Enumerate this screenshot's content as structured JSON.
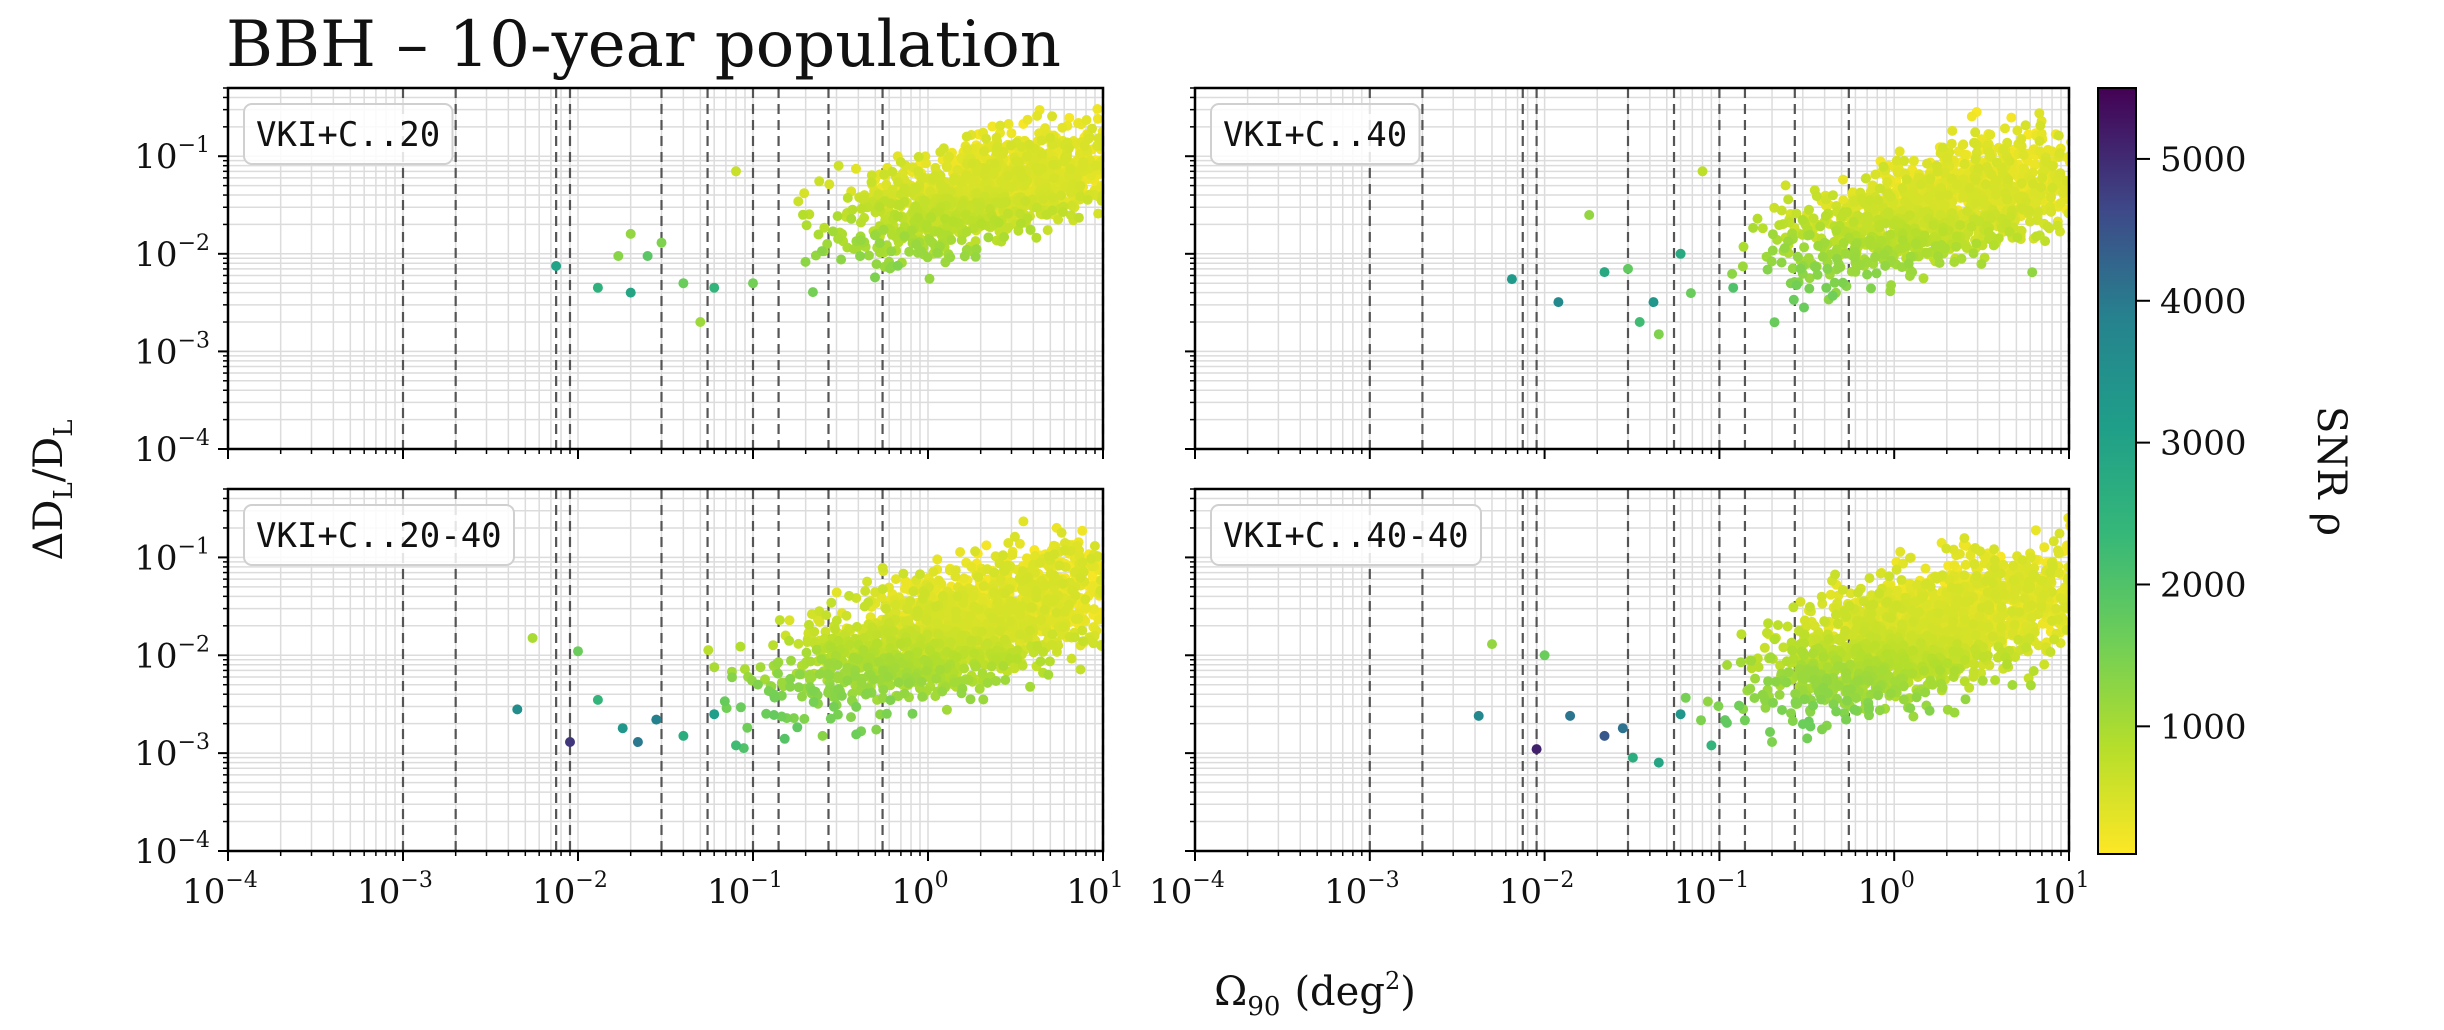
{
  "chart_data": {
    "type": "scatter",
    "title": "BBH – 10-year population",
    "xlabel": "Ω",
    "xlabel_sub": "90",
    "xlabel_unit_open": "(deg",
    "xlabel_unit_sup": "2",
    "xlabel_unit_close": ")",
    "ylabel": "ΔD",
    "ylabel_sub": "L",
    "ylabel_div": "/D",
    "ylabel_sub2": "L",
    "xscale": "log",
    "yscale": "log",
    "xlim": [
      0.0001,
      10
    ],
    "ylim": [
      0.0001,
      0.5
    ],
    "x_tick_labels": [
      "10",
      "10",
      "10",
      "10",
      "10",
      "10"
    ],
    "x_tick_exponents": [
      "−4",
      "−3",
      "−2",
      "−1",
      "0",
      "1"
    ],
    "x_tick_values": [
      0.0001,
      0.001,
      0.01,
      0.1,
      1,
      10
    ],
    "y_tick_labels": [
      "10",
      "10",
      "10",
      "10"
    ],
    "y_tick_exponents": [
      "−4",
      "−3",
      "−2",
      "−1"
    ],
    "y_tick_values": [
      0.0001,
      0.001,
      0.01,
      0.1
    ],
    "reference_lines_x": [
      0.001,
      0.002,
      0.0075,
      0.009,
      0.03,
      0.055,
      0.1,
      0.14,
      0.27,
      0.55,
      10
    ],
    "grid": true,
    "colorbar": {
      "label": "SNR",
      "label_symbol": "ρ",
      "range": [
        100,
        5500
      ],
      "ticks": [
        1000,
        2000,
        3000,
        4000,
        5000
      ],
      "tick_labels": [
        "1000",
        "2000",
        "3000",
        "4000",
        "5000"
      ],
      "colormap": "viridis_r"
    },
    "panels": [
      {
        "label": "VKI+C..20",
        "seed": 11,
        "n_points": 1400,
        "cloud": {
          "logx_center": 0.35,
          "logx_spread": 0.55,
          "logy_center": -1.35,
          "logy_spread": 0.45,
          "slope": 0.45
        },
        "outliers": [
          {
            "x": 0.0075,
            "y": 0.0075,
            "snr": 2700
          },
          {
            "x": 0.013,
            "y": 0.0045,
            "snr": 2300
          },
          {
            "x": 0.017,
            "y": 0.0095,
            "snr": 1200
          },
          {
            "x": 0.02,
            "y": 0.016,
            "snr": 1100
          },
          {
            "x": 0.025,
            "y": 0.0095,
            "snr": 1700
          },
          {
            "x": 0.03,
            "y": 0.013,
            "snr": 1300
          },
          {
            "x": 0.04,
            "y": 0.005,
            "snr": 1500
          },
          {
            "x": 0.05,
            "y": 0.002,
            "snr": 1000
          },
          {
            "x": 0.06,
            "y": 0.0045,
            "snr": 2200
          },
          {
            "x": 0.08,
            "y": 0.07,
            "snr": 600
          },
          {
            "x": 0.1,
            "y": 0.005,
            "snr": 1400
          }
        ],
        "bright_points": [
          {
            "x": 0.02,
            "y": 0.004,
            "snr": 2600
          }
        ]
      },
      {
        "label": "VKI+C..40",
        "seed": 23,
        "n_points": 1500,
        "cloud": {
          "logx_center": 0.3,
          "logx_spread": 0.6,
          "logy_center": -1.5,
          "logy_spread": 0.5,
          "slope": 0.45
        },
        "outliers": [
          {
            "x": 0.0065,
            "y": 0.0055,
            "snr": 2900
          },
          {
            "x": 0.012,
            "y": 0.0032,
            "snr": 3300
          },
          {
            "x": 0.018,
            "y": 0.025,
            "snr": 1100
          },
          {
            "x": 0.022,
            "y": 0.0065,
            "snr": 2500
          },
          {
            "x": 0.03,
            "y": 0.007,
            "snr": 1600
          },
          {
            "x": 0.035,
            "y": 0.002,
            "snr": 2000
          },
          {
            "x": 0.042,
            "y": 0.0032,
            "snr": 3000
          },
          {
            "x": 0.045,
            "y": 0.0015,
            "snr": 1300
          },
          {
            "x": 0.06,
            "y": 0.01,
            "snr": 2500
          },
          {
            "x": 0.08,
            "y": 0.07,
            "snr": 700
          },
          {
            "x": 0.12,
            "y": 0.0045,
            "snr": 1800
          }
        ],
        "bright_points": []
      },
      {
        "label": "VKI+C..20-40",
        "seed": 37,
        "n_points": 1900,
        "cloud": {
          "logx_center": 0.2,
          "logx_spread": 0.65,
          "logy_center": -1.7,
          "logy_spread": 0.55,
          "slope": 0.5
        },
        "outliers": [
          {
            "x": 0.0045,
            "y": 0.0028,
            "snr": 3200
          },
          {
            "x": 0.0055,
            "y": 0.015,
            "snr": 900
          },
          {
            "x": 0.009,
            "y": 0.0013,
            "snr": 5000
          },
          {
            "x": 0.01,
            "y": 0.011,
            "snr": 1500
          },
          {
            "x": 0.013,
            "y": 0.0035,
            "snr": 2200
          },
          {
            "x": 0.018,
            "y": 0.0018,
            "snr": 3000
          },
          {
            "x": 0.022,
            "y": 0.0013,
            "snr": 3700
          },
          {
            "x": 0.028,
            "y": 0.0022,
            "snr": 3500
          },
          {
            "x": 0.04,
            "y": 0.0015,
            "snr": 2400
          },
          {
            "x": 0.06,
            "y": 0.0025,
            "snr": 2800
          },
          {
            "x": 0.08,
            "y": 0.0012,
            "snr": 2000
          },
          {
            "x": 0.25,
            "y": 0.0015,
            "snr": 1200
          }
        ],
        "bright_points": []
      },
      {
        "label": "VKI+C..40-40",
        "seed": 51,
        "n_points": 2000,
        "cloud": {
          "logx_center": 0.2,
          "logx_spread": 0.65,
          "logy_center": -1.75,
          "logy_spread": 0.55,
          "slope": 0.5
        },
        "outliers": [
          {
            "x": 0.0042,
            "y": 0.0024,
            "snr": 3300
          },
          {
            "x": 0.005,
            "y": 0.013,
            "snr": 1100
          },
          {
            "x": 0.009,
            "y": 0.0011,
            "snr": 5200
          },
          {
            "x": 0.01,
            "y": 0.01,
            "snr": 1500
          },
          {
            "x": 0.014,
            "y": 0.0024,
            "snr": 3800
          },
          {
            "x": 0.022,
            "y": 0.0015,
            "snr": 4500
          },
          {
            "x": 0.028,
            "y": 0.0018,
            "snr": 3900
          },
          {
            "x": 0.032,
            "y": 0.0009,
            "snr": 2400
          },
          {
            "x": 0.045,
            "y": 0.0008,
            "snr": 2600
          },
          {
            "x": 0.06,
            "y": 0.0025,
            "snr": 3000
          },
          {
            "x": 0.09,
            "y": 0.0012,
            "snr": 2200
          },
          {
            "x": 0.2,
            "y": 0.0013,
            "snr": 1300
          }
        ],
        "bright_points": []
      }
    ]
  }
}
